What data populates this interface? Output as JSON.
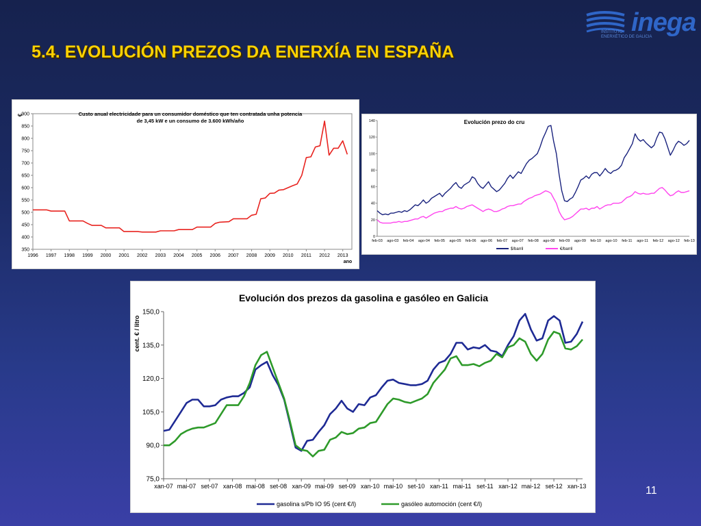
{
  "slide": {
    "title": "5.4. EVOLUCIÓN PREZOS DA ENERXÍA EN ESPAÑA",
    "page_number": "11",
    "logo": {
      "name": "inega",
      "subtitle_line1": "INSTITUTO",
      "subtitle_line2": "ENERXÉTICO DE GALICIA"
    }
  },
  "colors": {
    "title": "#ffd200",
    "electricity_line": "#e8231f",
    "crude_brent": "#1a237e",
    "crude_eur": "#ff44ee",
    "gasoline": "#1e2a94",
    "diesel": "#2e9a2a",
    "logo": "#2f66c8"
  },
  "chart_data": [
    {
      "id": "electricity",
      "type": "line",
      "title": "Custo anual electricidade para un consumidor doméstico que ten contratada unha potencia de 3,45 kW e un consumo de 3.600 kWh/año",
      "title_line1": "Custo anual electricidade para un consumidor doméstico que ten contratada unha potencia",
      "title_line2": "de 3,45 kW e un consumo de 3.600 kWh/año",
      "ylabel": "€",
      "xlabel": "ano",
      "ylim": [
        350,
        900
      ],
      "xlim": [
        1996,
        2013.5
      ],
      "yticks": [
        350,
        400,
        450,
        500,
        550,
        600,
        650,
        700,
        750,
        800,
        850,
        900
      ],
      "xticks": [
        "1996",
        "1997",
        "1998",
        "1999",
        "2000",
        "2001",
        "2002",
        "2003",
        "2004",
        "2005",
        "2006",
        "2007",
        "2008",
        "2009",
        "2010",
        "2011",
        "2012",
        "2013"
      ],
      "series": [
        {
          "x": [
            1996,
            1996.75,
            1997,
            1997.75,
            1998,
            1998.75,
            1999,
            1999.25,
            1999.5,
            1999.75,
            2000,
            2000.75,
            2001,
            2001.75,
            2002,
            2002.75,
            2003,
            2003.75,
            2004,
            2004.75,
            2005,
            2005.75,
            2006,
            2006.25,
            2006.75,
            2007,
            2007.75,
            2008,
            2008.25,
            2008.5,
            2008.75,
            2009,
            2009.25,
            2009.5,
            2009.75,
            2010,
            2010.25,
            2010.5,
            2010.75,
            2011,
            2011.25,
            2011.5,
            2011.75,
            2012,
            2012.25,
            2012.5,
            2012.75,
            2013,
            2013.25
          ],
          "values": [
            510,
            510,
            505,
            505,
            465,
            465,
            455,
            447,
            447,
            447,
            437,
            437,
            422,
            422,
            420,
            420,
            425,
            425,
            430,
            430,
            440,
            440,
            455,
            460,
            462,
            474,
            474,
            488,
            492,
            555,
            558,
            577,
            578,
            590,
            592,
            600,
            608,
            615,
            650,
            722,
            725,
            765,
            770,
            870,
            732,
            760,
            760,
            790,
            735
          ]
        }
      ]
    },
    {
      "id": "crude",
      "type": "line",
      "title": "Evolución prezo do cru",
      "ylim": [
        0,
        140
      ],
      "yticks": [
        0,
        20,
        40,
        60,
        80,
        100,
        120,
        140
      ],
      "xticks": [
        "feb-03",
        "ago-03",
        "feb-04",
        "ago-04",
        "feb-05",
        "ago-05",
        "feb-06",
        "ago-06",
        "feb-07",
        "ago-07",
        "feb-08",
        "ago-08",
        "feb-09",
        "ago-09",
        "feb-10",
        "ago-10",
        "feb-11",
        "ago-11",
        "feb-12",
        "ago-12",
        "feb-13"
      ],
      "legend_position": "bottom",
      "series": [
        {
          "name": "$/barril",
          "values": [
            31,
            28,
            26,
            27,
            26,
            28,
            28,
            29,
            30,
            29,
            31,
            30,
            32,
            35,
            38,
            37,
            40,
            44,
            40,
            42,
            46,
            48,
            50,
            52,
            48,
            52,
            55,
            58,
            62,
            65,
            60,
            58,
            62,
            64,
            66,
            72,
            70,
            64,
            60,
            58,
            62,
            66,
            60,
            57,
            54,
            56,
            60,
            64,
            70,
            74,
            70,
            74,
            78,
            76,
            82,
            88,
            92,
            94,
            97,
            100,
            108,
            118,
            125,
            133,
            134,
            115,
            100,
            75,
            55,
            43,
            42,
            45,
            47,
            53,
            60,
            68,
            70,
            73,
            70,
            75,
            77,
            77,
            73,
            77,
            82,
            78,
            76,
            79,
            80,
            82,
            86,
            95,
            100,
            106,
            112,
            124,
            118,
            115,
            117,
            113,
            110,
            107,
            110,
            119,
            126,
            125,
            118,
            108,
            98,
            104,
            111,
            115,
            113,
            110,
            112,
            116
          ]
        },
        {
          "name": "€/barril",
          "values": [
            20,
            17,
            16,
            16,
            16,
            16,
            17,
            17,
            18,
            17,
            18,
            18,
            19,
            20,
            21,
            21,
            23,
            24,
            22,
            24,
            26,
            28,
            29,
            30,
            30,
            32,
            33,
            34,
            34,
            36,
            34,
            33,
            34,
            36,
            37,
            38,
            36,
            34,
            32,
            30,
            32,
            33,
            32,
            30,
            30,
            31,
            33,
            34,
            36,
            37,
            37,
            38,
            39,
            39,
            42,
            44,
            46,
            47,
            49,
            50,
            51,
            53,
            55,
            54,
            52,
            46,
            40,
            30,
            24,
            20,
            21,
            22,
            24,
            27,
            30,
            33,
            33,
            34,
            32,
            34,
            34,
            36,
            33,
            35,
            37,
            38,
            38,
            40,
            40,
            40,
            41,
            44,
            47,
            48,
            50,
            54,
            52,
            51,
            52,
            51,
            51,
            52,
            52,
            55,
            58,
            59,
            56,
            52,
            49,
            50,
            53,
            55,
            53,
            53,
            54,
            55
          ]
        }
      ]
    },
    {
      "id": "fuel",
      "type": "line",
      "title": "Evolución dos prezos da gasolina e gasóleo en Galicia",
      "ylabel": "cent. € / litro",
      "ylim": [
        75,
        150
      ],
      "yticks": [
        "75,0",
        "90,0",
        "105,0",
        "120,0",
        "135,0",
        "150,0"
      ],
      "xticks": [
        "xan-07",
        "mai-07",
        "set-07",
        "xan-08",
        "mai-08",
        "set-08",
        "xan-09",
        "mai-09",
        "set-09",
        "xan-10",
        "mai-10",
        "set-10",
        "xan-11",
        "mai-11",
        "set-11",
        "xan-12",
        "mai-12",
        "set-12",
        "xan-13"
      ],
      "legend_position": "bottom",
      "series": [
        {
          "name": "gasolina s/Pb IO 95 (cent €/l)",
          "values": [
            96.5,
            97,
            101,
            105,
            109,
            110.5,
            110.5,
            107.5,
            107.5,
            108,
            110.5,
            111.5,
            112,
            112,
            113.5,
            116,
            124,
            126,
            127.5,
            121.5,
            117,
            110.5,
            100,
            89,
            87.5,
            92,
            92.5,
            96,
            99,
            104,
            106.5,
            110,
            106.5,
            105,
            108.5,
            108,
            111.5,
            112.5,
            116,
            119,
            119.5,
            118,
            117.5,
            117,
            117,
            117.5,
            119,
            124,
            127,
            128,
            131,
            136,
            136,
            133,
            134,
            133.5,
            135,
            132.5,
            132,
            130,
            135,
            139,
            146,
            149,
            142,
            137,
            138,
            146,
            148,
            146,
            136,
            136.5,
            140,
            145.5
          ]
        },
        {
          "name": "gasóleo automoción (cent €/l)",
          "values": [
            90,
            90,
            92,
            95,
            96.5,
            97.5,
            98,
            98,
            99,
            100,
            104,
            108,
            108,
            108,
            112,
            118,
            126,
            130.5,
            132,
            125,
            118,
            111,
            101,
            90,
            88,
            87.5,
            85,
            87.5,
            88,
            92.5,
            93.5,
            96,
            95,
            95.5,
            97.5,
            98,
            100,
            100.5,
            104.5,
            108.5,
            111,
            110.5,
            109.5,
            109,
            110,
            111,
            113,
            118,
            121,
            124,
            129,
            130,
            126,
            126,
            126.5,
            125.5,
            127,
            128,
            131,
            129.5,
            134,
            135,
            138,
            136.5,
            131,
            128,
            131,
            137.5,
            141,
            140,
            133.5,
            133,
            134.5,
            137.5
          ]
        }
      ]
    }
  ]
}
